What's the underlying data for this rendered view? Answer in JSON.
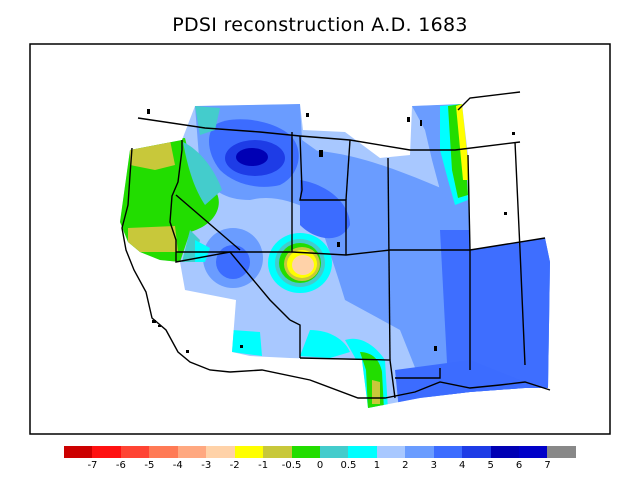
{
  "title": "PDSI reconstruction A.D. 1683",
  "legend": {
    "labels": [
      "-7",
      "-6",
      "-5",
      "-4",
      "-3",
      "-2",
      "-1",
      "-0.5",
      "0",
      "0.5",
      "1",
      "2",
      "3",
      "4",
      "5",
      "6",
      "7"
    ],
    "colors": [
      "#cc0000",
      "#ff1111",
      "#ff4433",
      "#ff7a55",
      "#ffa880",
      "#ffd2a8",
      "#ffff00",
      "#c8c83a",
      "#22dd00",
      "#44cccc",
      "#00ffff",
      "#a8c8ff",
      "#6a9cff",
      "#3c6cff",
      "#1e3ce6",
      "#0000b4",
      "#0000c8",
      "#888888"
    ]
  },
  "map": {
    "plot_style": "filled contour over state/coast outlines",
    "frame": "black box border"
  }
}
